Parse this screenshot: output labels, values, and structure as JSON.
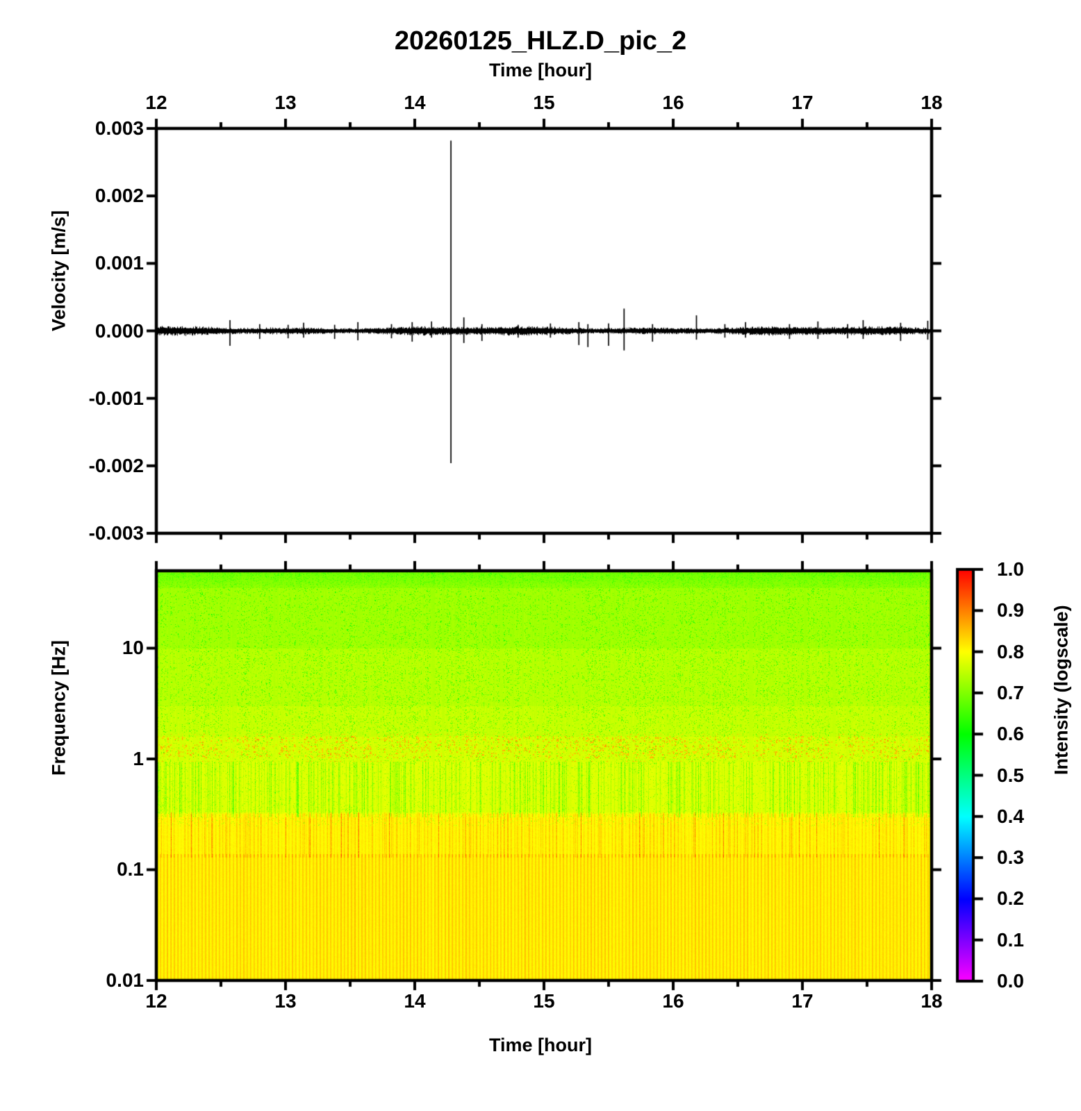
{
  "title": "20260125_HLZ.D_pic_2",
  "top_axis": {
    "label": "Time [hour]",
    "tick_labels": [
      "12",
      "13",
      "14",
      "15",
      "16",
      "17",
      "18"
    ],
    "tick_hours": [
      12,
      13,
      14,
      15,
      16,
      17,
      18
    ]
  },
  "bottom_axis": {
    "label": "Time [hour]",
    "tick_labels": [
      "12",
      "13",
      "14",
      "15",
      "16",
      "17",
      "18"
    ],
    "tick_hours": [
      12,
      13,
      14,
      15,
      16,
      17,
      18
    ]
  },
  "velocity_panel": {
    "ylabel": "Velocity [m/s]",
    "ytick_labels": [
      "0.003",
      "0.002",
      "0.001",
      "0.000",
      "-0.001",
      "-0.002",
      "-0.003"
    ],
    "ytick_values": [
      0.003,
      0.002,
      0.001,
      0.0,
      -0.001,
      -0.002,
      -0.003
    ]
  },
  "spectrogram_panel": {
    "ylabel": "Frequency [Hz]",
    "ytick_labels": [
      "10",
      "1",
      "0.1",
      "0.01"
    ],
    "ytick_values": [
      10,
      1,
      0.1,
      0.01
    ]
  },
  "colorbar": {
    "label": "Intensity (logscale)",
    "tick_labels": [
      "1.0",
      "0.9",
      "0.8",
      "0.7",
      "0.6",
      "0.5",
      "0.4",
      "0.3",
      "0.2",
      "0.1",
      "0.0"
    ],
    "tick_values": [
      1.0,
      0.9,
      0.8,
      0.7,
      0.6,
      0.5,
      0.4,
      0.3,
      0.2,
      0.1,
      0.0
    ],
    "stops": [
      {
        "value": 1.0,
        "color": "#ff0000"
      },
      {
        "value": 0.9,
        "color": "#ff8000"
      },
      {
        "value": 0.8,
        "color": "#ffff00"
      },
      {
        "value": 0.7,
        "color": "#80ff00"
      },
      {
        "value": 0.6,
        "color": "#00ff00"
      },
      {
        "value": 0.5,
        "color": "#00ff80"
      },
      {
        "value": 0.4,
        "color": "#00ffff"
      },
      {
        "value": 0.3,
        "color": "#0080ff"
      },
      {
        "value": 0.2,
        "color": "#0000ff"
      },
      {
        "value": 0.1,
        "color": "#8000ff"
      },
      {
        "value": 0.0,
        "color": "#ff00ff"
      }
    ]
  },
  "chart_data": [
    {
      "type": "line",
      "title": "20260125_HLZ.D_pic_2",
      "xlabel": "Time [hour]",
      "ylabel": "Velocity [m/s]",
      "xlim": [
        12,
        18
      ],
      "ylim": [
        -0.003,
        0.003
      ],
      "x_ticks": [
        12,
        13,
        14,
        15,
        16,
        17,
        18
      ],
      "y_ticks": [
        0.003,
        0.002,
        0.001,
        0.0,
        -0.001,
        -0.002,
        -0.003
      ],
      "description": "Continuous broadband seismic trace: dense noise band centered on 0 m/s with impulsive spikes; main event near hour 14.28 peaking at +0.0028 / -0.00196 m/s.",
      "noise_halfwidth_ms": 6e-05,
      "line_color": "#000000",
      "events": [
        {
          "hour": 12.57,
          "peak": 0.00016,
          "trough": -0.00022
        },
        {
          "hour": 12.8,
          "peak": 0.0001,
          "trough": -0.00012
        },
        {
          "hour": 13.02,
          "peak": 9e-05,
          "trough": -0.00011
        },
        {
          "hour": 13.14,
          "peak": 0.00012,
          "trough": -0.0001
        },
        {
          "hour": 13.38,
          "peak": 9e-05,
          "trough": -0.00012
        },
        {
          "hour": 13.56,
          "peak": 0.00013,
          "trough": -0.00014
        },
        {
          "hour": 13.82,
          "peak": 0.0001,
          "trough": -0.00011
        },
        {
          "hour": 13.98,
          "peak": 0.00013,
          "trough": -0.00016
        },
        {
          "hour": 14.13,
          "peak": 0.00014,
          "trough": -0.0001
        },
        {
          "hour": 14.28,
          "peak": 0.00282,
          "trough": -0.00196
        },
        {
          "hour": 14.38,
          "peak": 0.0002,
          "trough": -0.00018
        },
        {
          "hour": 14.52,
          "peak": 0.0001,
          "trough": -0.00015
        },
        {
          "hour": 14.8,
          "peak": 9e-05,
          "trough": -0.0001
        },
        {
          "hour": 15.05,
          "peak": 0.00011,
          "trough": -0.0001
        },
        {
          "hour": 15.27,
          "peak": 0.00013,
          "trough": -0.00021
        },
        {
          "hour": 15.34,
          "peak": 0.0001,
          "trough": -0.00024
        },
        {
          "hour": 15.5,
          "peak": 0.00011,
          "trough": -0.00022
        },
        {
          "hour": 15.62,
          "peak": 0.00033,
          "trough": -0.00029
        },
        {
          "hour": 15.84,
          "peak": 0.0001,
          "trough": -0.00016
        },
        {
          "hour": 16.18,
          "peak": 0.00023,
          "trough": -0.00013
        },
        {
          "hour": 16.4,
          "peak": 0.0001,
          "trough": -0.0001
        },
        {
          "hour": 16.56,
          "peak": 0.00013,
          "trough": -0.0001
        },
        {
          "hour": 16.9,
          "peak": 0.0001,
          "trough": -0.00012
        },
        {
          "hour": 17.12,
          "peak": 0.00014,
          "trough": -0.00012
        },
        {
          "hour": 17.35,
          "peak": 0.0001,
          "trough": -0.00011
        },
        {
          "hour": 17.47,
          "peak": 0.00016,
          "trough": -0.00012
        },
        {
          "hour": 17.76,
          "peak": 0.00012,
          "trough": -0.00015
        },
        {
          "hour": 17.97,
          "peak": 0.00015,
          "trough": -0.00013
        }
      ]
    },
    {
      "type": "heatmap",
      "xlabel": "Time [hour]",
      "ylabel": "Frequency [Hz]",
      "xlim": [
        12,
        18
      ],
      "ylim_log": [
        0.01,
        50
      ],
      "y_ticks": [
        10,
        1,
        0.1,
        0.01
      ],
      "intensity_range": [
        0.0,
        1.0
      ],
      "colorbar_label": "Intensity (logscale)",
      "description": "Spectrogram, rainbow colormap (0=magenta to 1=red). Mostly yellow (~0.8) below 1 Hz, yellow-green (~0.73-0.77) above 1 Hz fading to green (~0.69) at 50 Hz; orange-red microseism striping 0.13-0.33 Hz; fine regular orange stripes below 0.13 Hz; green speckle columns 0.3-30 Hz; orange dash band near 1-1.6 Hz.",
      "bands": [
        {
          "freq_range": [
            35,
            50
          ],
          "base_intensity": 0.695,
          "texture": "green speckle, greener toward top"
        },
        {
          "freq_range": [
            10,
            35
          ],
          "base_intensity": 0.728,
          "texture": "green speckle columns"
        },
        {
          "freq_range": [
            3,
            10
          ],
          "base_intensity": 0.745,
          "texture": "green speckle columns"
        },
        {
          "freq_range": [
            1.6,
            3
          ],
          "base_intensity": 0.757,
          "texture": "green speckle columns"
        },
        {
          "freq_range": [
            0.95,
            1.6
          ],
          "base_intensity": 0.768,
          "texture": "orange dashes + green speckle"
        },
        {
          "freq_range": [
            0.32,
            0.95
          ],
          "base_intensity": 0.775,
          "texture": "green vertical streaks"
        },
        {
          "freq_range": [
            0.13,
            0.32
          ],
          "base_intensity": 0.795,
          "texture": "orange-red vertical stripes (microseism)"
        },
        {
          "freq_range": [
            0.01,
            0.13
          ],
          "base_intensity": 0.803,
          "texture": "fine regular orange stripes"
        }
      ]
    }
  ]
}
